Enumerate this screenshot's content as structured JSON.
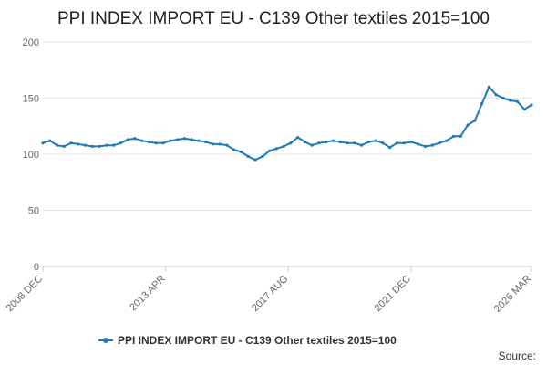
{
  "chart_data": {
    "type": "line",
    "title": "PPI INDEX IMPORT EU - C139 Other textiles 2015=100",
    "xlabel": "",
    "ylabel": "",
    "x_range": [
      "2008-12",
      "2026-03"
    ],
    "ylim": [
      0,
      200
    ],
    "y_ticks": [
      0,
      50,
      100,
      150,
      200
    ],
    "x_tick_labels": [
      "2008 DEC",
      "2013 APR",
      "2017 AUG",
      "2021 DEC",
      "2026 MAR"
    ],
    "x_tick_dates": [
      "2008-12",
      "2013-04",
      "2017-08",
      "2021-12",
      "2026-03"
    ],
    "grid": "horizontal",
    "legend_position": "bottom",
    "source_label": "Source:",
    "colors": {
      "series": "#1f7ab5",
      "grid": "#e5e5e5",
      "axis": "#cccccc"
    },
    "series": [
      {
        "name": "PPI INDEX IMPORT EU - C139 Other textiles 2015=100",
        "x": [
          "2008-12",
          "2009-03",
          "2009-06",
          "2009-09",
          "2009-12",
          "2010-03",
          "2010-06",
          "2010-09",
          "2010-12",
          "2011-03",
          "2011-06",
          "2011-09",
          "2011-12",
          "2012-03",
          "2012-06",
          "2012-09",
          "2012-12",
          "2013-03",
          "2013-06",
          "2013-09",
          "2013-12",
          "2014-03",
          "2014-06",
          "2014-09",
          "2014-12",
          "2015-03",
          "2015-06",
          "2015-09",
          "2015-12",
          "2016-03",
          "2016-06",
          "2016-09",
          "2016-12",
          "2017-03",
          "2017-06",
          "2017-09",
          "2017-12",
          "2018-03",
          "2018-06",
          "2018-09",
          "2018-12",
          "2019-03",
          "2019-06",
          "2019-09",
          "2019-12",
          "2020-03",
          "2020-06",
          "2020-09",
          "2020-12",
          "2021-03",
          "2021-06",
          "2021-09",
          "2021-12",
          "2022-03",
          "2022-06",
          "2022-09",
          "2022-12",
          "2023-03",
          "2023-06",
          "2023-09",
          "2023-12",
          "2024-03",
          "2024-06",
          "2024-09",
          "2024-12",
          "2025-03",
          "2025-06",
          "2025-09",
          "2025-12",
          "2026-03"
        ],
        "values": [
          110,
          112,
          108,
          107,
          110,
          109,
          108,
          107,
          107,
          108,
          108,
          110,
          113,
          114,
          112,
          111,
          110,
          110,
          112,
          113,
          114,
          113,
          112,
          111,
          109,
          109,
          108,
          104,
          102,
          98,
          95,
          98,
          103,
          105,
          107,
          110,
          115,
          111,
          108,
          110,
          111,
          112,
          111,
          110,
          110,
          108,
          111,
          112,
          110,
          106,
          110,
          110,
          111,
          109,
          107,
          108,
          110,
          112,
          116,
          116,
          126,
          130,
          145,
          160,
          153,
          150,
          148,
          147,
          140,
          144
        ]
      }
    ]
  }
}
